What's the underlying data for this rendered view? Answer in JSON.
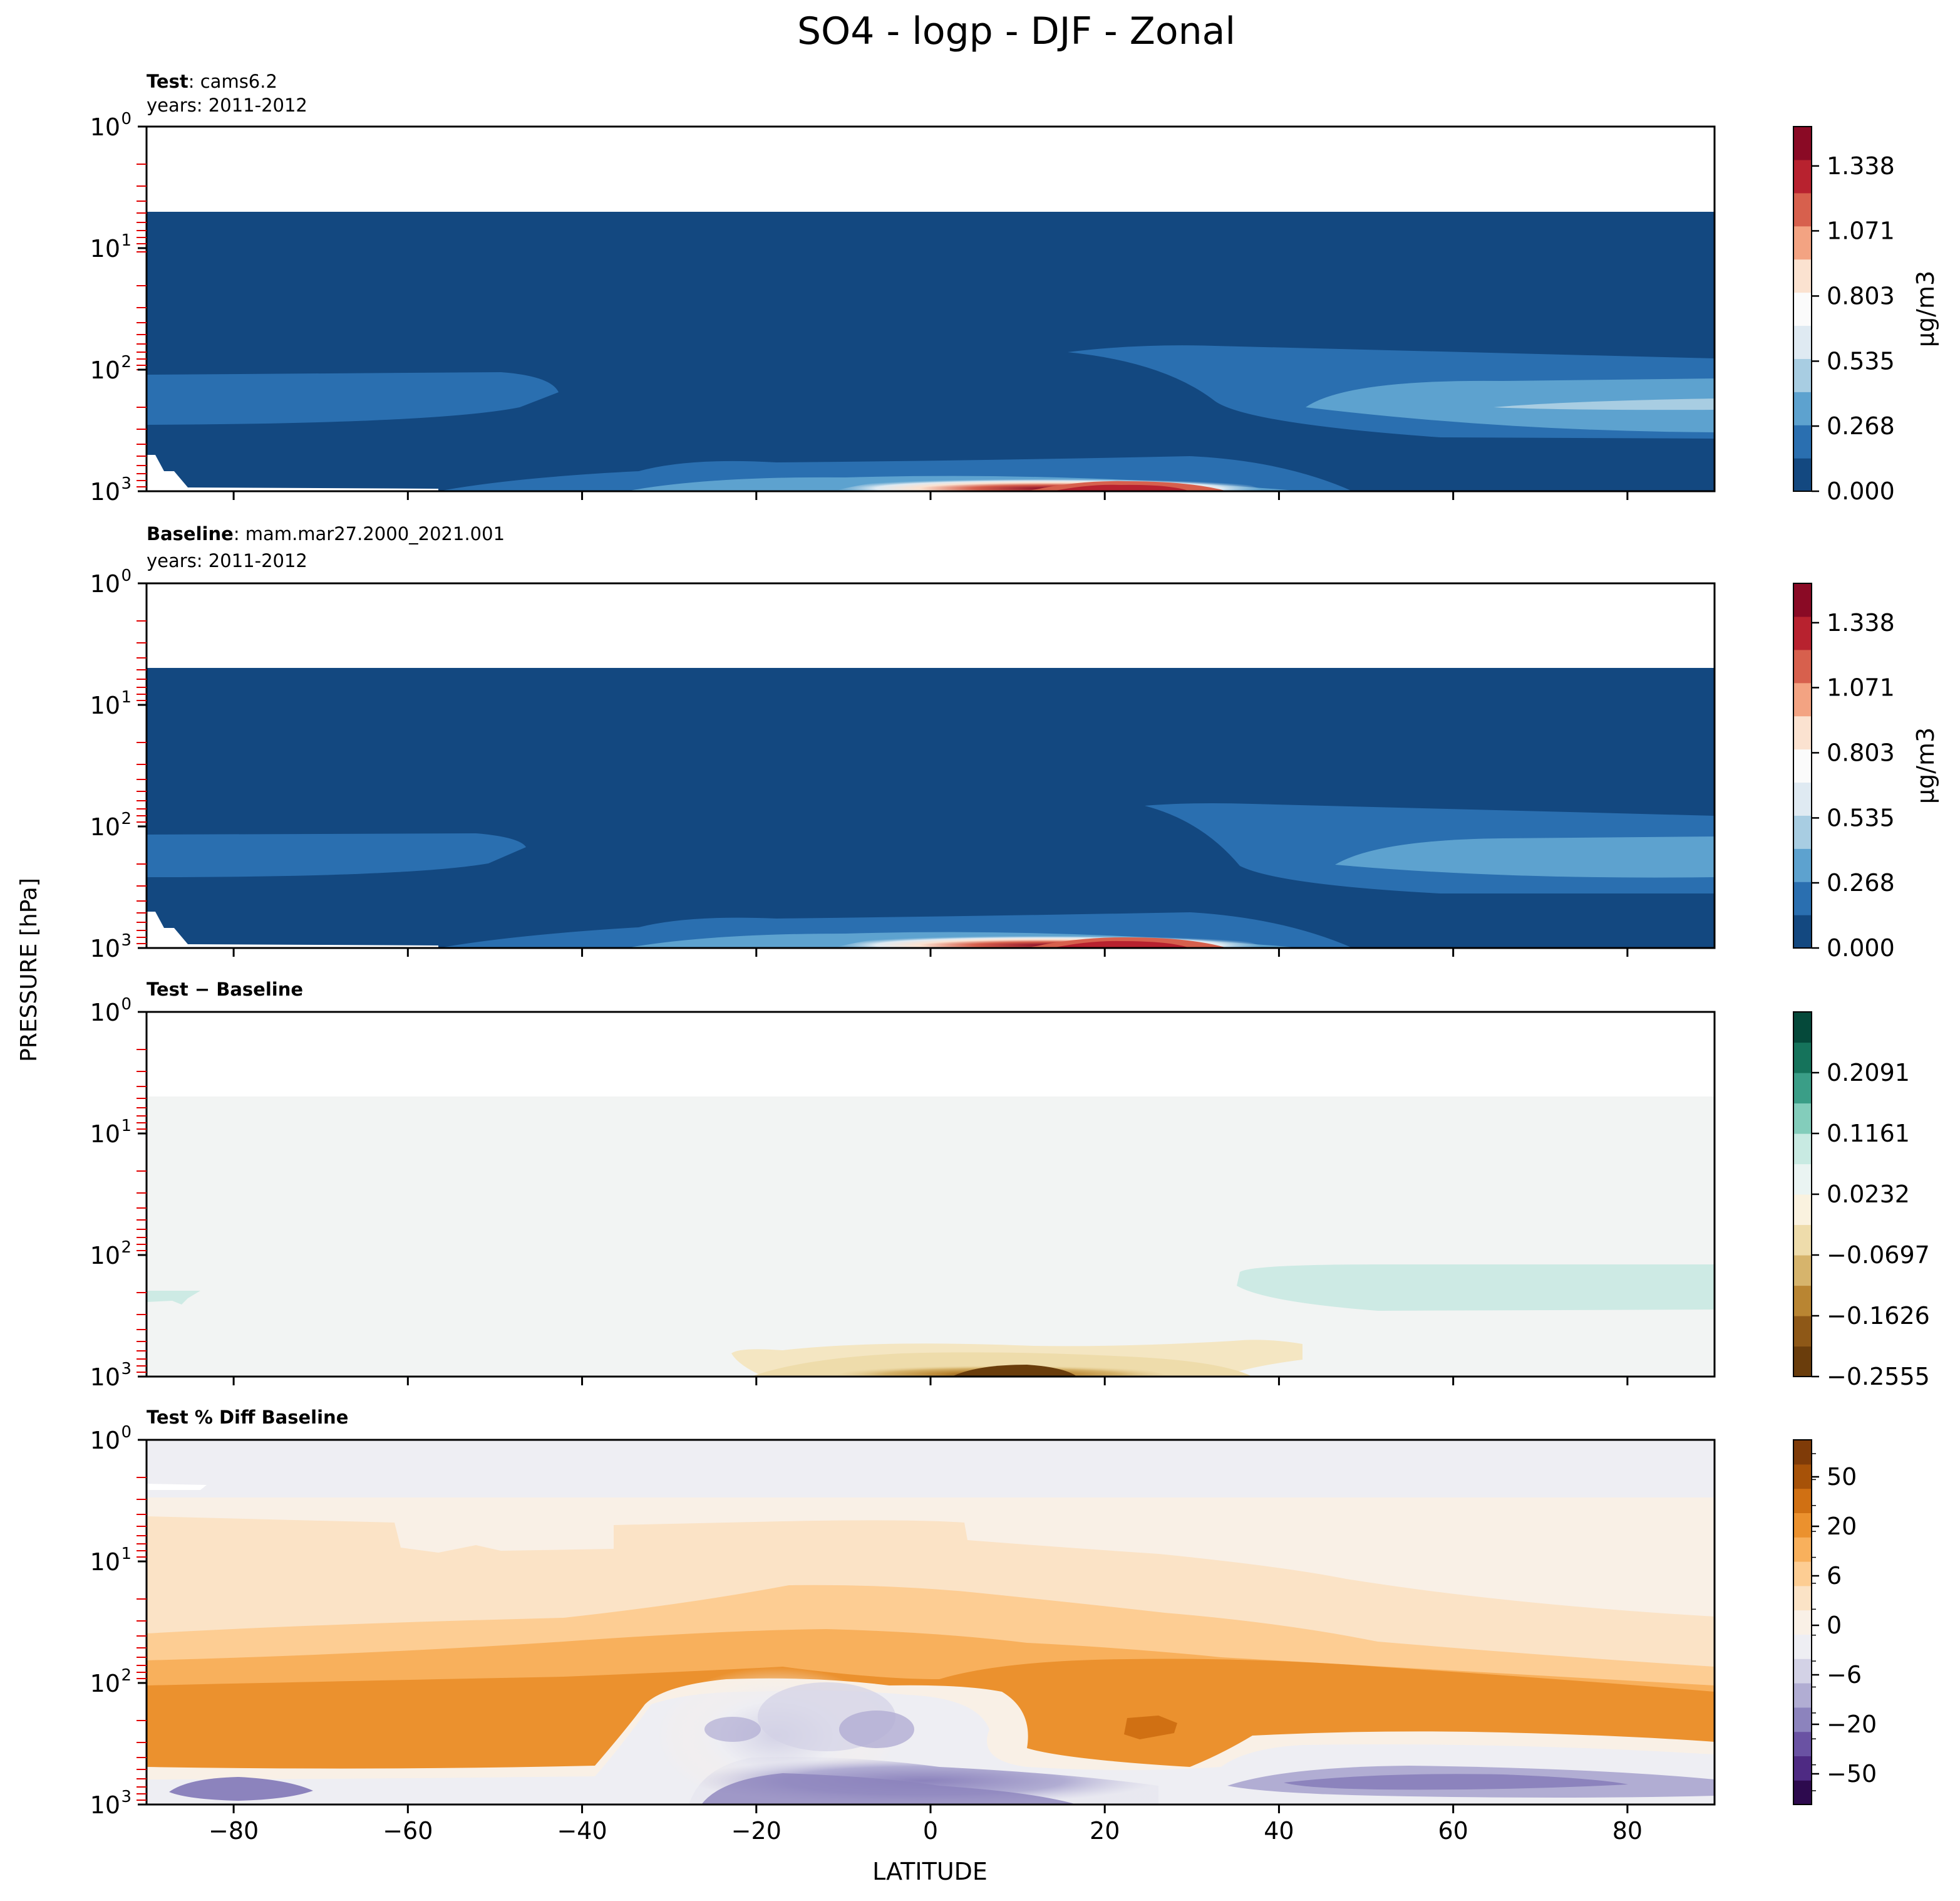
{
  "figure": {
    "title": "SO4 - logp - DJF - Zonal",
    "ylabel": "PRESSURE [hPa]",
    "xlabel": "LATITUDE"
  },
  "chart_data": [
    {
      "type": "heatmap",
      "panel": "test",
      "heading_bold": "Test",
      "heading_rest": ": cams6.2",
      "subheading": "years: 2011-2012",
      "xlim": [
        -90,
        90
      ],
      "y_scale": "log",
      "ylim": [
        1000,
        1
      ],
      "y_tick_labels": [
        "10",
        "10",
        "10",
        "10"
      ],
      "y_tick_exponents": [
        "0",
        "1",
        "2",
        "3"
      ],
      "x_ticks": [
        -80,
        -60,
        -40,
        -20,
        0,
        20,
        40,
        60,
        80
      ],
      "x_tick_labels_shown": false,
      "colorbar": {
        "label": "μg/m3",
        "tick_labels": [
          "0.000",
          "0.268",
          "0.535",
          "0.803",
          "1.071",
          "1.338"
        ],
        "levels": [
          0.0,
          0.134,
          0.268,
          0.401,
          0.535,
          0.669,
          0.803,
          0.937,
          1.071,
          1.204,
          1.338,
          1.472,
          1.5
        ],
        "colors": [
          "#134880",
          "#2a6fb0",
          "#5da2cf",
          "#a8cde2",
          "#dfeaf2",
          "#fbfbfb",
          "#fbe2d0",
          "#f3a382",
          "#d7604d",
          "#b8222f",
          "#8a0a25"
        ]
      },
      "regions": [
        {
          "lat": [
            -90,
            90
          ],
          "p": [
            5,
            1000
          ],
          "value": "0.000-0.134"
        },
        {
          "lat": [
            -90,
            -46
          ],
          "p": [
            120,
            250
          ],
          "value": "0.134-0.268"
        },
        {
          "lat": [
            16,
            90
          ],
          "p": [
            60,
            230
          ],
          "value": "0.134-0.268"
        },
        {
          "lat": [
            43,
            90
          ],
          "p": [
            140,
            200
          ],
          "value": "0.268-0.401"
        },
        {
          "lat": [
            -56,
            40
          ],
          "p": [
            500,
            1000
          ],
          "value": "0.134-0.268"
        },
        {
          "lat": [
            -5,
            35
          ],
          "p": [
            750,
            1000
          ],
          "value": "0.401-0.669"
        },
        {
          "lat": [
            13,
            30
          ],
          "p": [
            900,
            1000
          ],
          "value": "1.071-1.472"
        }
      ]
    },
    {
      "type": "heatmap",
      "panel": "baseline",
      "heading_bold": "Baseline",
      "heading_rest": ": mam.mar27.2000_2021.001",
      "subheading": "years: 2011-2012",
      "xlim": [
        -90,
        90
      ],
      "y_scale": "log",
      "ylim": [
        1000,
        1
      ],
      "y_tick_labels": [
        "10",
        "10",
        "10",
        "10"
      ],
      "y_tick_exponents": [
        "0",
        "1",
        "2",
        "3"
      ],
      "x_ticks": [
        -80,
        -60,
        -40,
        -20,
        0,
        20,
        40,
        60,
        80
      ],
      "x_tick_labels_shown": false,
      "colorbar": {
        "label": "μg/m3",
        "tick_labels": [
          "0.000",
          "0.268",
          "0.535",
          "0.803",
          "1.071",
          "1.338"
        ],
        "levels": [
          0.0,
          0.134,
          0.268,
          0.401,
          0.535,
          0.669,
          0.803,
          0.937,
          1.071,
          1.204,
          1.338,
          1.472,
          1.5
        ],
        "colors": [
          "#134880",
          "#2a6fb0",
          "#5da2cf",
          "#a8cde2",
          "#dfeaf2",
          "#fbfbfb",
          "#fbe2d0",
          "#f3a382",
          "#d7604d",
          "#b8222f",
          "#8a0a25"
        ]
      },
      "regions": [
        {
          "lat": [
            -90,
            90
          ],
          "p": [
            5,
            1000
          ],
          "value": "0.000-0.134"
        },
        {
          "lat": [
            -90,
            -50
          ],
          "p": [
            120,
            260
          ],
          "value": "0.134-0.268"
        },
        {
          "lat": [
            25,
            90
          ],
          "p": [
            70,
            240
          ],
          "value": "0.134-0.268"
        },
        {
          "lat": [
            47,
            90
          ],
          "p": [
            150,
            220
          ],
          "value": "0.268-0.401"
        },
        {
          "lat": [
            -56,
            40
          ],
          "p": [
            500,
            1000
          ],
          "value": "0.134-0.268"
        },
        {
          "lat": [
            -5,
            35
          ],
          "p": [
            750,
            1000
          ],
          "value": "0.401-0.669"
        },
        {
          "lat": [
            13,
            30
          ],
          "p": [
            900,
            1000
          ],
          "value": "1.071-1.472"
        }
      ]
    },
    {
      "type": "heatmap",
      "panel": "difference",
      "heading_bold": "Test − Baseline",
      "heading_rest": "",
      "subheading": "",
      "xlim": [
        -90,
        90
      ],
      "y_scale": "log",
      "ylim": [
        1000,
        1
      ],
      "y_tick_labels": [
        "10",
        "10",
        "10",
        "10"
      ],
      "y_tick_exponents": [
        "0",
        "1",
        "2",
        "3"
      ],
      "x_ticks": [
        -80,
        -60,
        -40,
        -20,
        0,
        20,
        40,
        60,
        80
      ],
      "x_tick_labels_shown": false,
      "colorbar": {
        "label": "",
        "tick_labels": [
          "−0.2555",
          "−0.1626",
          "−0.0697",
          "0.0232",
          "0.1161",
          "0.2091"
        ],
        "colors": [
          "#6a3d0c",
          "#8e5817",
          "#b98532",
          "#d6b46c",
          "#eedcab",
          "#faf2df",
          "#eaf4f2",
          "#c8eae2",
          "#83cdbb",
          "#3a9e87",
          "#15735b",
          "#05493a"
        ]
      },
      "regions": [
        {
          "lat": [
            -90,
            90
          ],
          "p": [
            5,
            1000
          ],
          "value": "~0"
        },
        {
          "lat": [
            35,
            90
          ],
          "p": [
            140,
            300
          ],
          "value": "0.0232-0.070"
        },
        {
          "lat": [
            -90,
            -83
          ],
          "p": [
            190,
            240
          ],
          "value": "0.0232-0.070"
        },
        {
          "lat": [
            -23,
            43
          ],
          "p": [
            600,
            1000
          ],
          "value": "-0.0697 to -0.023"
        },
        {
          "lat": [
            -10,
            25
          ],
          "p": [
            750,
            1000
          ],
          "value": "-0.1161 to -0.0697"
        },
        {
          "lat": [
            5,
            18
          ],
          "p": [
            880,
            1000
          ],
          "value": "-0.2555 to -0.1626"
        }
      ]
    },
    {
      "type": "heatmap",
      "panel": "percent_difference",
      "heading_bold": "Test % Diff Baseline",
      "heading_rest": "",
      "subheading": "",
      "xlim": [
        -90,
        90
      ],
      "y_scale": "log",
      "ylim": [
        1000,
        1
      ],
      "y_tick_labels": [
        "10",
        "10",
        "10",
        "10"
      ],
      "y_tick_exponents": [
        "0",
        "1",
        "2",
        "3"
      ],
      "x_ticks": [
        -80,
        -60,
        -40,
        -20,
        0,
        20,
        40,
        60,
        80
      ],
      "x_tick_labels": [
        "−80",
        "−60",
        "−40",
        "−20",
        "0",
        "20",
        "40",
        "60",
        "80"
      ],
      "colorbar": {
        "label": "",
        "tick_labels": [
          "−50",
          "−20",
          "−6",
          "0",
          "6",
          "20",
          "50"
        ],
        "colors": [
          "#2d0a4e",
          "#4e2a83",
          "#6a52a3",
          "#8c83bd",
          "#b1add3",
          "#d3d2e6",
          "#eeeef3",
          "#f9f0e6",
          "#fbe3c6",
          "#fdcd93",
          "#f8b05c",
          "#eb912e",
          "#d07013",
          "#a75208",
          "#7f3b08"
        ]
      },
      "regions": [
        {
          "lat": [
            -90,
            90
          ],
          "p": [
            1,
            3
          ],
          "value": "0 to 2"
        },
        {
          "lat": [
            -90,
            90
          ],
          "p": [
            3,
            40
          ],
          "value": "2 to 6"
        },
        {
          "lat": [
            -90,
            90
          ],
          "p": [
            40,
            200
          ],
          "value": "6 to 20"
        },
        {
          "lat": [
            -90,
            90
          ],
          "p": [
            200,
            600
          ],
          "value": "20 to 35"
        },
        {
          "lat": [
            -35,
            12
          ],
          "p": [
            250,
            700
          ],
          "value": "-6 to 6"
        },
        {
          "lat": [
            -30,
            10
          ],
          "p": [
            700,
            1000
          ],
          "value": "-20 to -6"
        },
        {
          "lat": [
            -83,
            -70
          ],
          "p": [
            700,
            1000
          ],
          "value": "-20 to -6"
        },
        {
          "lat": [
            35,
            90
          ],
          "p": [
            600,
            1000
          ],
          "value": "-20 to -6"
        }
      ]
    }
  ]
}
